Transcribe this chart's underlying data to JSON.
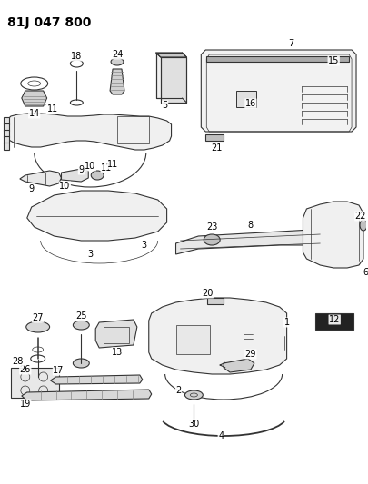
{
  "title": "81J 047 800",
  "bg_color": "#ffffff",
  "line_color": "#333333",
  "label_color": "#000000",
  "font_size_title": 10,
  "font_size_labels": 7
}
